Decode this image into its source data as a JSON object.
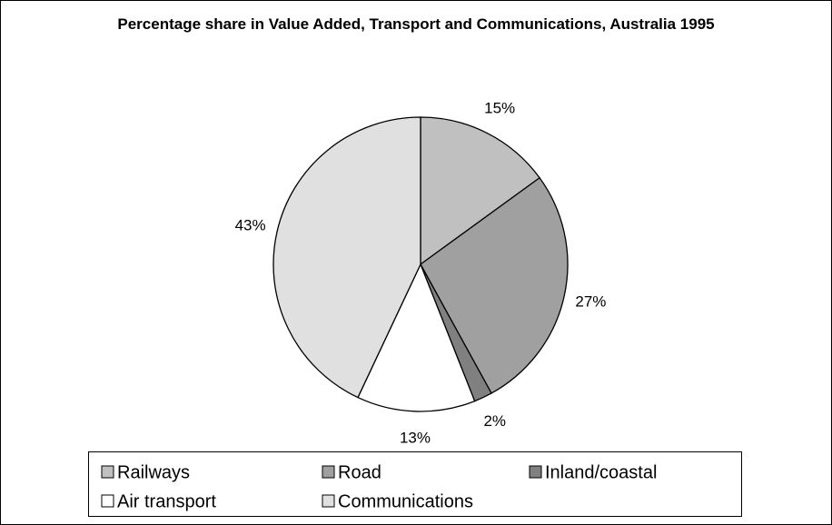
{
  "chart_data": {
    "type": "pie",
    "title": "Percentage share in Value Added, Transport and Communications, Australia 1995",
    "categories": [
      "Railways",
      "Road",
      "Inland/coastal",
      "Air transport",
      "Communications"
    ],
    "values": [
      15,
      27,
      2,
      13,
      43
    ],
    "value_labels": [
      "15%",
      "27%",
      "2%",
      "13%",
      "43%"
    ],
    "colors": [
      "#c0c0c0",
      "#a0a0a0",
      "#808080",
      "#ffffff",
      "#e0e0e0"
    ],
    "legend": "bottom"
  }
}
